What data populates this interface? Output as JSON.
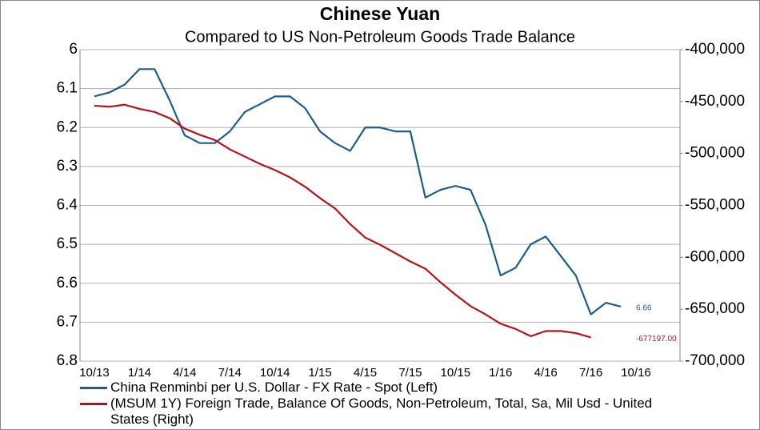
{
  "chart_data": {
    "type": "line",
    "title": "Chinese Yuan",
    "subtitle": "Compared to US Non-Petroleum Goods Trade Balance",
    "categories": [
      "10/13",
      null,
      null,
      "1/14",
      null,
      null,
      "4/14",
      null,
      null,
      "7/14",
      null,
      null,
      "10/14",
      null,
      null,
      "1/15",
      null,
      null,
      "4/15",
      null,
      null,
      "7/15",
      null,
      null,
      "10/15",
      null,
      null,
      "1/16",
      null,
      null,
      "4/16",
      null,
      null,
      "7/16",
      null,
      null,
      "10/16"
    ],
    "ylim": [
      6,
      6.8
    ],
    "y_inverted": true,
    "yticks": [
      6,
      6.1,
      6.2,
      6.3,
      6.4,
      6.5,
      6.6,
      6.7,
      6.8
    ],
    "y2lim": [
      -400000,
      -700000
    ],
    "y2ticks": [
      {
        "value": -400000,
        "label": "-400,000"
      },
      {
        "value": -450000,
        "label": "-450,000"
      },
      {
        "value": -500000,
        "label": "-500,000"
      },
      {
        "value": -550000,
        "label": "-550,000"
      },
      {
        "value": -600000,
        "label": "-600,000"
      },
      {
        "value": -650000,
        "label": "-650,000"
      },
      {
        "value": -700000,
        "label": "-700,000"
      }
    ],
    "grid": true,
    "series": [
      {
        "name": "China Renminbi per U.S. Dollar - FX Rate - Spot  (Left)",
        "color": "#1b5e8c",
        "values": [
          6.12,
          6.11,
          6.09,
          6.05,
          6.05,
          6.13,
          6.22,
          6.24,
          6.24,
          6.21,
          6.16,
          6.14,
          6.12,
          6.12,
          6.15,
          6.21,
          6.24,
          6.26,
          6.2,
          6.2,
          6.21,
          6.21,
          6.38,
          6.36,
          6.35,
          6.36,
          6.45,
          6.58,
          6.56,
          6.5,
          6.48,
          6.53,
          6.58,
          6.68,
          6.65,
          6.66,
          null
        ],
        "last_label": "6.66"
      },
      {
        "name": "(MSUM 1Y) Foreign Trade, Balance Of Goods, Non-Petroleum, Total, Sa, Mil Usd - United States  (Right)",
        "color": "#b5121b",
        "axis": "y2",
        "values": [
          -454000,
          -455000,
          -453000,
          -457000,
          -460000,
          -466000,
          -476000,
          -482000,
          -487000,
          -496000,
          -503000,
          -510000,
          -516000,
          -523000,
          -532000,
          -543000,
          -553000,
          -568000,
          -581000,
          -588000,
          -596000,
          -604000,
          -611000,
          -624000,
          -636000,
          -647000,
          -655000,
          -664000,
          -669000,
          -676000,
          -671000,
          -671000,
          -673000,
          -677197,
          null,
          null,
          null
        ],
        "last_label": "-677197.00"
      }
    ]
  }
}
